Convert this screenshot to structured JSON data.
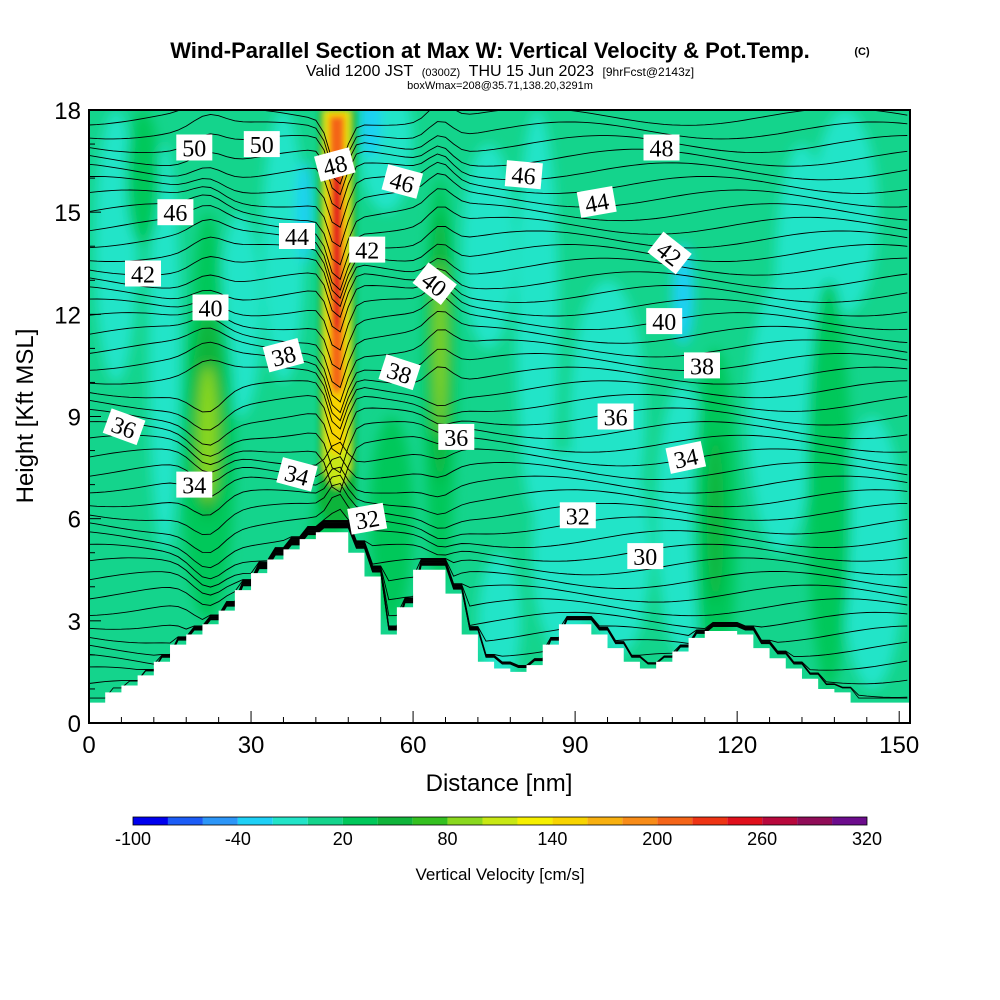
{
  "title": {
    "main": "Wind-Parallel Section at Max W: Vertical Velocity & Pot.Temp.",
    "mark": "(C)",
    "valid": "Valid 1200 JST",
    "utc": "(0300Z)",
    "date": "THU 15 Jun 2023",
    "fcst": "[9hrFcst@2143z]",
    "box": "boxWmax=208@35.71,138.20,3291m"
  },
  "chart_data": {
    "type": "heatmap",
    "description_free": true,
    "xlabel": "Distance [nm]",
    "ylabel": "Height [Kft MSL]",
    "xlim": [
      0,
      152
    ],
    "ylim": [
      0,
      18
    ],
    "x_ticks": [
      0,
      30,
      60,
      90,
      120,
      150
    ],
    "y_ticks": [
      0,
      3,
      6,
      9,
      12,
      15,
      18
    ],
    "colorbar": {
      "title": "Vertical Velocity [cm/s]",
      "tick_labels": [
        "-100",
        "-40",
        "20",
        "80",
        "140",
        "200",
        "260",
        "320"
      ],
      "tick_values": [
        -100,
        -40,
        20,
        80,
        140,
        200,
        260,
        320
      ],
      "levels": [
        -100,
        -80,
        -60,
        -40,
        -20,
        0,
        20,
        40,
        60,
        80,
        100,
        120,
        140,
        160,
        180,
        200,
        220,
        240,
        260,
        280,
        300,
        320
      ],
      "colors": [
        "#0000ee",
        "#1c5cf6",
        "#2c96f8",
        "#1ed0f6",
        "#22e4c8",
        "#14d48c",
        "#00c85a",
        "#10b43a",
        "#34c020",
        "#8ad81e",
        "#c8e814",
        "#f6f000",
        "#f8d400",
        "#f8b010",
        "#f88c18",
        "#f46418",
        "#ee3414",
        "#e0101c",
        "#b8083c",
        "#900c58",
        "#6c0c8c"
      ]
    },
    "theta_labels": [
      {
        "text": "50",
        "x": 19.5,
        "y": 16.9,
        "rot": 0
      },
      {
        "text": "50",
        "x": 32,
        "y": 17.0,
        "rot": 0
      },
      {
        "text": "48",
        "x": 45.5,
        "y": 16.4,
        "rot": -15
      },
      {
        "text": "48",
        "x": 106,
        "y": 16.9,
        "rot": 0
      },
      {
        "text": "46",
        "x": 16,
        "y": 15.0,
        "rot": 0
      },
      {
        "text": "46",
        "x": 58,
        "y": 15.9,
        "rot": 15
      },
      {
        "text": "46",
        "x": 80.5,
        "y": 16.1,
        "rot": 5
      },
      {
        "text": "44",
        "x": 38.5,
        "y": 14.3,
        "rot": 0
      },
      {
        "text": "44",
        "x": 94,
        "y": 15.3,
        "rot": -10
      },
      {
        "text": "42",
        "x": 10,
        "y": 13.2,
        "rot": 0
      },
      {
        "text": "42",
        "x": 51.5,
        "y": 13.9,
        "rot": 0
      },
      {
        "text": "42",
        "x": 107.5,
        "y": 13.8,
        "rot": 38
      },
      {
        "text": "40",
        "x": 22.5,
        "y": 12.2,
        "rot": 0
      },
      {
        "text": "40",
        "x": 64,
        "y": 12.9,
        "rot": 38
      },
      {
        "text": "40",
        "x": 106.5,
        "y": 11.8,
        "rot": 0
      },
      {
        "text": "38",
        "x": 36,
        "y": 10.8,
        "rot": -15
      },
      {
        "text": "38",
        "x": 57.5,
        "y": 10.3,
        "rot": 18
      },
      {
        "text": "38",
        "x": 113.5,
        "y": 10.5,
        "rot": 0
      },
      {
        "text": "36",
        "x": 6.5,
        "y": 8.7,
        "rot": 20
      },
      {
        "text": "36",
        "x": 68,
        "y": 8.4,
        "rot": 0
      },
      {
        "text": "36",
        "x": 97.5,
        "y": 9.0,
        "rot": 0
      },
      {
        "text": "34",
        "x": 19.5,
        "y": 7.0,
        "rot": 0
      },
      {
        "text": "34",
        "x": 38.5,
        "y": 7.3,
        "rot": 15
      },
      {
        "text": "34",
        "x": 110.5,
        "y": 7.8,
        "rot": -12
      },
      {
        "text": "32",
        "x": 51.5,
        "y": 6.0,
        "rot": -10
      },
      {
        "text": "32",
        "x": 90.5,
        "y": 6.1,
        "rot": 0
      },
      {
        "text": "30",
        "x": 103,
        "y": 4.9,
        "rot": 0
      }
    ],
    "terrain_profile": {
      "x": [
        0,
        3,
        3,
        6,
        6,
        9,
        9,
        12,
        12,
        15,
        15,
        18,
        18,
        21,
        21,
        24,
        24,
        27,
        27,
        30,
        30,
        33,
        33,
        36,
        36,
        39,
        39,
        42,
        42,
        45,
        45,
        48,
        48,
        51,
        51,
        54,
        54,
        57,
        57,
        60,
        60,
        63,
        63,
        66,
        66,
        69,
        69,
        72,
        72,
        75,
        75,
        78,
        78,
        81,
        81,
        84,
        84,
        87,
        87,
        90,
        90,
        93,
        93,
        96,
        96,
        99,
        99,
        102,
        102,
        105,
        105,
        108,
        108,
        111,
        111,
        114,
        114,
        117,
        117,
        120,
        120,
        123,
        123,
        126,
        126,
        129,
        129,
        132,
        132,
        135,
        135,
        138,
        138,
        141,
        141,
        144,
        144,
        147,
        147,
        150,
        150,
        152
      ],
      "h": [
        0.6,
        0.6,
        0.9,
        0.9,
        1.1,
        1.1,
        1.4,
        1.4,
        1.8,
        1.8,
        2.3,
        2.3,
        2.6,
        2.6,
        2.9,
        2.9,
        3.3,
        3.3,
        3.9,
        3.9,
        4.4,
        4.4,
        4.8,
        4.8,
        5.1,
        5.1,
        5.4,
        5.4,
        5.6,
        5.6,
        5.6,
        5.6,
        5.0,
        5.0,
        4.3,
        4.3,
        2.6,
        2.6,
        3.4,
        3.4,
        4.5,
        4.5,
        4.5,
        4.5,
        3.8,
        3.8,
        2.6,
        2.6,
        1.8,
        1.8,
        1.6,
        1.6,
        1.5,
        1.5,
        1.7,
        1.7,
        2.3,
        2.3,
        2.9,
        2.9,
        2.9,
        2.9,
        2.6,
        2.6,
        2.2,
        2.2,
        1.8,
        1.8,
        1.6,
        1.6,
        1.8,
        1.8,
        2.1,
        2.1,
        2.5,
        2.5,
        2.7,
        2.7,
        2.7,
        2.7,
        2.6,
        2.6,
        2.2,
        2.2,
        1.9,
        1.9,
        1.6,
        1.6,
        1.3,
        1.3,
        1.0,
        1.0,
        0.9,
        0.9,
        0.6,
        0.6,
        0.6,
        0.6,
        0.6,
        0.6,
        0.6,
        0.6
      ]
    }
  }
}
